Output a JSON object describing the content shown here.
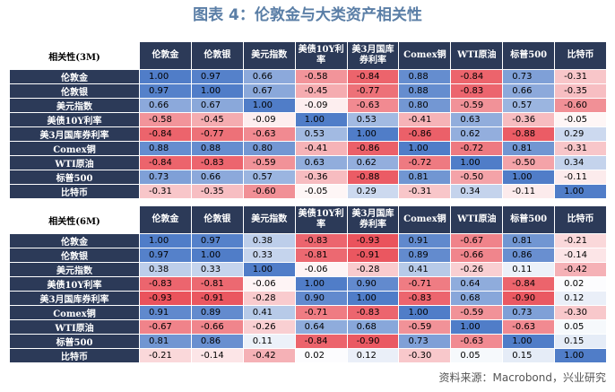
{
  "title": "图表 4：伦敦金与大类资产相关性",
  "source": "资料来源：Macrobond，兴业研究",
  "tables": [
    {
      "corner": "相关性(3M)",
      "columns": [
        "伦敦金",
        "伦敦银",
        "美元指数",
        "美债10Y利率",
        "美3月国库券利率",
        "Comex铜",
        "WTI原油",
        "标普500",
        "比特币"
      ],
      "rows": [
        {
          "label": "伦敦金",
          "cells": [
            "1.00",
            "0.97",
            "0.66",
            "-0.58",
            "-0.84",
            "0.88",
            "-0.84",
            "0.73",
            "-0.31"
          ]
        },
        {
          "label": "伦敦银",
          "cells": [
            "0.97",
            "1.00",
            "0.67",
            "-0.45",
            "-0.77",
            "0.88",
            "-0.83",
            "0.66",
            "-0.35"
          ]
        },
        {
          "label": "美元指数",
          "cells": [
            "0.66",
            "0.67",
            "1.00",
            "-0.09",
            "-0.63",
            "0.80",
            "-0.59",
            "0.57",
            "-0.60"
          ]
        },
        {
          "label": "美债10Y利率",
          "cells": [
            "-0.58",
            "-0.45",
            "-0.09",
            "1.00",
            "0.53",
            "-0.41",
            "0.63",
            "-0.36",
            "-0.05"
          ]
        },
        {
          "label": "美3月国库券利率",
          "cells": [
            "-0.84",
            "-0.77",
            "-0.63",
            "0.53",
            "1.00",
            "-0.86",
            "0.62",
            "-0.88",
            "0.29"
          ]
        },
        {
          "label": "Comex铜",
          "cells": [
            "0.88",
            "0.88",
            "0.80",
            "-0.41",
            "-0.86",
            "1.00",
            "-0.72",
            "0.81",
            "-0.31"
          ]
        },
        {
          "label": "WTI原油",
          "cells": [
            "-0.84",
            "-0.83",
            "-0.59",
            "0.63",
            "0.62",
            "-0.72",
            "1.00",
            "-0.50",
            "0.34"
          ]
        },
        {
          "label": "标普500",
          "cells": [
            "0.73",
            "0.66",
            "0.57",
            "-0.36",
            "-0.88",
            "0.81",
            "-0.50",
            "1.00",
            "-0.11"
          ]
        },
        {
          "label": "比特币",
          "cells": [
            "-0.31",
            "-0.35",
            "-0.60",
            "-0.05",
            "0.29",
            "-0.31",
            "0.34",
            "-0.11",
            "1.00"
          ]
        }
      ]
    },
    {
      "corner": "相关性(6M)",
      "columns": [
        "伦敦金",
        "伦敦银",
        "美元指数",
        "美债10Y利率",
        "美3月国库券利率",
        "Comex铜",
        "WTI原油",
        "标普500",
        "比特币"
      ],
      "rows": [
        {
          "label": "伦敦金",
          "cells": [
            "1.00",
            "0.97",
            "0.38",
            "-0.83",
            "-0.93",
            "0.91",
            "-0.67",
            "0.81",
            "-0.21"
          ]
        },
        {
          "label": "伦敦银",
          "cells": [
            "0.97",
            "1.00",
            "0.33",
            "-0.81",
            "-0.91",
            "0.89",
            "-0.66",
            "0.86",
            "-0.14"
          ]
        },
        {
          "label": "美元指数",
          "cells": [
            "0.38",
            "0.33",
            "1.00",
            "-0.06",
            "-0.28",
            "0.41",
            "-0.26",
            "0.11",
            "-0.42"
          ]
        },
        {
          "label": "美债10Y利率",
          "cells": [
            "-0.83",
            "-0.81",
            "-0.06",
            "1.00",
            "0.90",
            "-0.71",
            "0.64",
            "-0.84",
            "0.02"
          ]
        },
        {
          "label": "美3月国库券利率",
          "cells": [
            "-0.93",
            "-0.91",
            "-0.28",
            "0.90",
            "1.00",
            "-0.83",
            "0.68",
            "-0.90",
            "0.12"
          ]
        },
        {
          "label": "Comex铜",
          "cells": [
            "0.91",
            "0.89",
            "0.41",
            "-0.71",
            "-0.83",
            "1.00",
            "-0.59",
            "0.73",
            "-0.30"
          ]
        },
        {
          "label": "WTI原油",
          "cells": [
            "-0.67",
            "-0.66",
            "-0.26",
            "0.64",
            "0.68",
            "-0.59",
            "1.00",
            "-0.63",
            "0.05"
          ]
        },
        {
          "label": "标普500",
          "cells": [
            "0.81",
            "0.86",
            "0.11",
            "-0.84",
            "-0.90",
            "0.73",
            "-0.63",
            "1.00",
            "0.15"
          ]
        },
        {
          "label": "比特币",
          "cells": [
            "-0.21",
            "-0.14",
            "-0.42",
            "0.02",
            "0.12",
            "-0.30",
            "0.05",
            "0.15",
            "1.00"
          ]
        }
      ]
    }
  ]
}
